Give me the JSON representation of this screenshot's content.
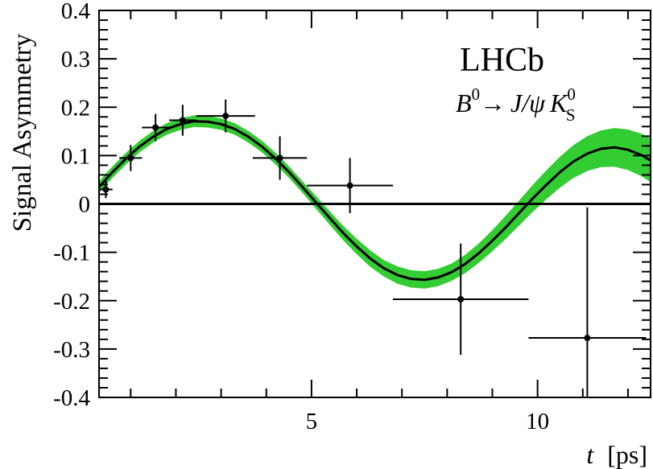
{
  "chart_data": {
    "type": "scatter",
    "title": "",
    "xlabel_var": "t",
    "xlabel_unit": "[ps]",
    "ylabel": "Signal Asymmetry",
    "xlim": [
      0.3,
      12.5
    ],
    "ylim": [
      -0.4,
      0.4
    ],
    "x_ticks": [
      5,
      10
    ],
    "x_tick_labels": [
      "5",
      "10"
    ],
    "y_ticks": [
      -0.4,
      -0.3,
      -0.2,
      -0.1,
      0,
      0.1,
      0.2,
      0.3,
      0.4
    ],
    "y_tick_labels": [
      "-0.4",
      "-0.3",
      "-0.2",
      "-0.1",
      "0",
      "0.1",
      "0.2",
      "0.3",
      "0.4"
    ],
    "zero_line": true,
    "experiment_label": "LHCb",
    "decay_label": {
      "parent": "B",
      "parent_sup": "0",
      "arrow": "→",
      "daughter1": "J/ψ",
      "daughter2": "K",
      "daughter2_sub": "S",
      "daughter2_sup": "0"
    },
    "colors": {
      "band": "#33cc33",
      "curve": "#000000",
      "points": "#000000"
    },
    "fit_curve": {
      "x": [
        0.3,
        0.6,
        0.9,
        1.2,
        1.5,
        1.8,
        2.1,
        2.4,
        2.7,
        3.0,
        3.3,
        3.6,
        3.9,
        4.2,
        4.5,
        4.8,
        5.1,
        5.4,
        5.7,
        6.0,
        6.3,
        6.6,
        6.9,
        7.2,
        7.5,
        7.8,
        8.1,
        8.4,
        8.7,
        9.0,
        9.3,
        9.6,
        9.9,
        10.2,
        10.5,
        10.8,
        11.1,
        11.4,
        11.7,
        12.0,
        12.3,
        12.5
      ],
      "y": [
        0.035,
        0.066,
        0.094,
        0.119,
        0.139,
        0.155,
        0.165,
        0.171,
        0.17,
        0.165,
        0.155,
        0.139,
        0.119,
        0.094,
        0.066,
        0.035,
        0.003,
        -0.029,
        -0.06,
        -0.088,
        -0.113,
        -0.133,
        -0.147,
        -0.155,
        -0.157,
        -0.152,
        -0.141,
        -0.124,
        -0.102,
        -0.076,
        -0.048,
        -0.018,
        0.012,
        0.04,
        0.066,
        0.088,
        0.104,
        0.114,
        0.117,
        0.112,
        0.101,
        0.09
      ],
      "band_halfwidth": [
        0.012,
        0.012,
        0.012,
        0.012,
        0.012,
        0.012,
        0.012,
        0.012,
        0.012,
        0.012,
        0.012,
        0.012,
        0.012,
        0.012,
        0.012,
        0.012,
        0.013,
        0.014,
        0.015,
        0.016,
        0.017,
        0.017,
        0.018,
        0.018,
        0.018,
        0.018,
        0.018,
        0.019,
        0.02,
        0.022,
        0.024,
        0.026,
        0.028,
        0.03,
        0.032,
        0.034,
        0.036,
        0.038,
        0.04,
        0.042,
        0.044,
        0.045
      ]
    },
    "series": [
      {
        "x": [
          0.45,
          1.0,
          1.55,
          2.15,
          3.1,
          4.3,
          5.85,
          8.3,
          11.1
        ],
        "y": [
          0.03,
          0.095,
          0.158,
          0.173,
          0.182,
          0.095,
          0.038,
          -0.197,
          -0.277
        ],
        "xerr_low": [
          0.15,
          0.25,
          0.3,
          0.3,
          0.65,
          0.6,
          0.95,
          1.5,
          1.3
        ],
        "xerr_high": [
          0.15,
          0.25,
          0.3,
          0.3,
          0.65,
          0.6,
          0.95,
          1.5,
          1.3
        ],
        "yerr": [
          0.018,
          0.027,
          0.028,
          0.032,
          0.034,
          0.045,
          0.057,
          0.115,
          0.27
        ]
      }
    ]
  }
}
